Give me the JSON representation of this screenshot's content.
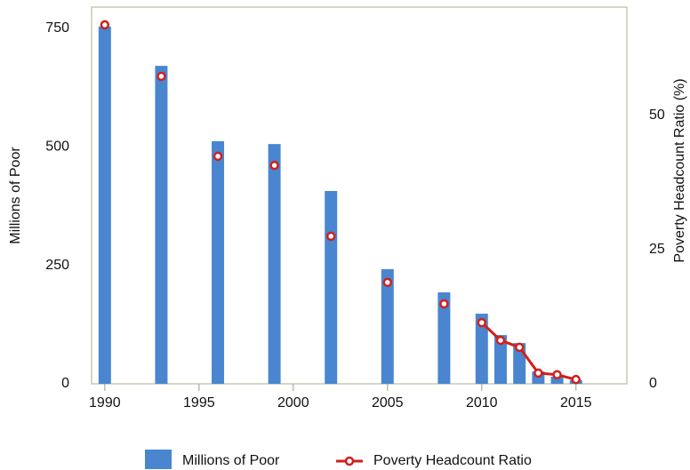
{
  "chart_data": {
    "type": "bar",
    "x": [
      1990,
      1993,
      1996,
      1999,
      2002,
      2005,
      2008,
      2010,
      2011,
      2012,
      2013,
      2014,
      2015
    ],
    "series": [
      {
        "name": "Millions of Poor",
        "type": "bar",
        "color": "#4a86cf",
        "values": [
          754,
          671,
          512,
          506,
          407,
          242,
          193,
          148,
          103,
          86,
          26,
          15,
          8
        ]
      },
      {
        "name": "Poverty Headcount Ratio",
        "type": "line",
        "axis": "y2",
        "color": "#d0201c",
        "values": [
          66.9,
          57.3,
          42.4,
          40.7,
          27.5,
          18.9,
          14.9,
          11.4,
          8.1,
          6.8,
          2.0,
          1.7,
          0.8
        ]
      }
    ],
    "xlim": [
      1989.3,
      2017.7
    ],
    "xticks": [
      1990,
      1995,
      2000,
      2005,
      2010,
      2015
    ],
    "ylim": [
      0,
      795
    ],
    "yticks": [
      0,
      250,
      500,
      750
    ],
    "y2lim": [
      0,
      70.2
    ],
    "y2ticks": [
      0,
      25,
      50
    ],
    "ylabel": "Millions of Poor",
    "y2label": "Poverty Headcount Ratio (%)"
  }
}
